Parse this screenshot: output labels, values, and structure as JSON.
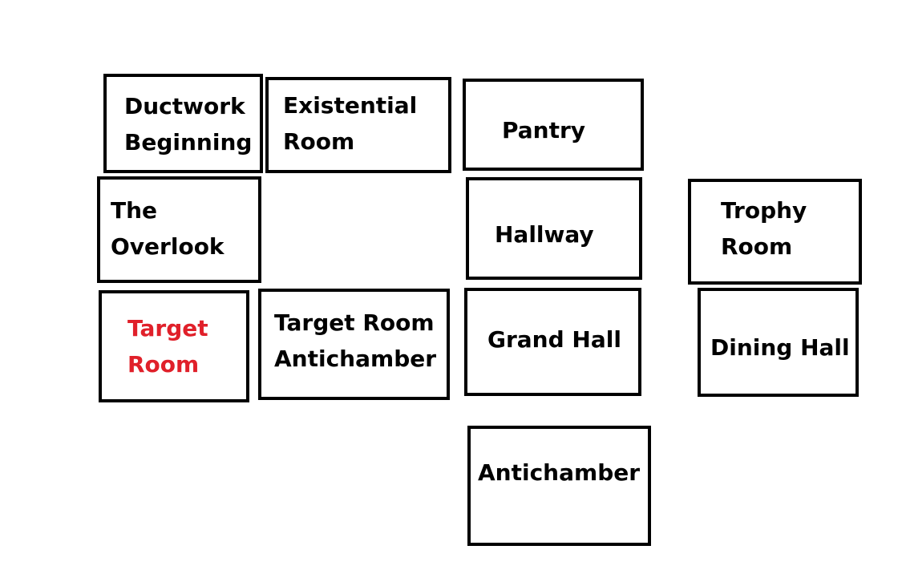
{
  "colors": {
    "border": "#000000",
    "text": "#000000",
    "highlight": "#e0202a",
    "background": "#ffffff"
  },
  "rooms": {
    "ductwork": {
      "lines": [
        "Ductwork",
        "Beginning"
      ]
    },
    "existential": {
      "lines": [
        "Existential",
        "Room"
      ]
    },
    "pantry": {
      "lines": [
        "Pantry"
      ]
    },
    "overlook": {
      "lines": [
        "The",
        "Overlook"
      ]
    },
    "hallway": {
      "lines": [
        "Hallway"
      ]
    },
    "trophy": {
      "lines": [
        "Trophy",
        "Room"
      ]
    },
    "target": {
      "lines": [
        "Target",
        "Room"
      ],
      "highlighted": true
    },
    "target_antichamber": {
      "lines": [
        "Target Room",
        "Antichamber"
      ]
    },
    "grand_hall": {
      "lines": [
        "Grand Hall"
      ]
    },
    "dining_hall": {
      "lines": [
        "Dining Hall"
      ]
    },
    "antichamber": {
      "lines": [
        "Antichamber"
      ]
    }
  }
}
